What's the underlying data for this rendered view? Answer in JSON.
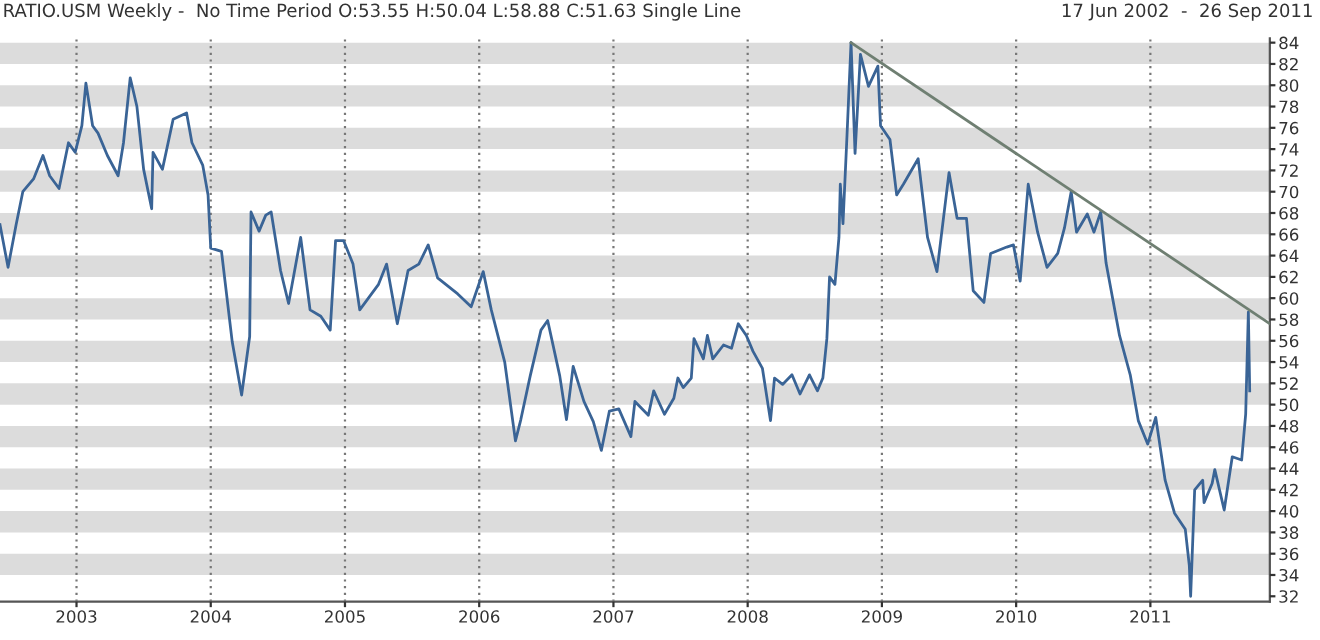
{
  "chart_data": {
    "type": "line",
    "title": "RATIO.USM Weekly -  No Time Period O:53.55 H:50.04 L:58.88 C:51.63 Single Line",
    "subtitle": "17 Jun 2002  -  26 Sep 2011",
    "series": [
      {
        "color": "#3a6496",
        "x": [
          2002.43,
          2002.49,
          2002.55,
          2002.6,
          2002.68,
          2002.75,
          2002.8,
          2002.87,
          2002.94,
          2002.99,
          2003.04,
          2003.07,
          2003.12,
          2003.16,
          2003.23,
          2003.31,
          2003.35,
          2003.4,
          2003.45,
          2003.5,
          2003.56,
          2003.57,
          2003.64,
          2003.72,
          2003.82,
          2003.86,
          2003.94,
          2003.98,
          2004.0,
          2004.08,
          2004.16,
          2004.23,
          2004.29,
          2004.3,
          2004.36,
          2004.41,
          2004.45,
          2004.52,
          2004.58,
          2004.67,
          2004.74,
          2004.82,
          2004.89,
          2004.93,
          2004.99,
          2005.06,
          2005.11,
          2005.18,
          2005.25,
          2005.31,
          2005.39,
          2005.47,
          2005.55,
          2005.62,
          2005.69,
          2005.84,
          2005.94,
          2006.03,
          2006.09,
          2006.19,
          2006.27,
          2006.31,
          2006.38,
          2006.46,
          2006.51,
          2006.6,
          2006.65,
          2006.7,
          2006.78,
          2006.85,
          2006.91,
          2006.97,
          2007.04,
          2007.13,
          2007.16,
          2007.26,
          2007.3,
          2007.38,
          2007.45,
          2007.48,
          2007.52,
          2007.58,
          2007.6,
          2007.67,
          2007.7,
          2007.74,
          2007.82,
          2007.88,
          2007.93,
          2007.99,
          2008.04,
          2008.11,
          2008.17,
          2008.2,
          2008.26,
          2008.33,
          2008.39,
          2008.46,
          2008.52,
          2008.56,
          2008.59,
          2008.61,
          2008.65,
          2008.68,
          2008.69,
          2008.71,
          2008.74,
          2008.77,
          2008.8,
          2008.84,
          2008.9,
          2008.97,
          2008.99,
          2009.06,
          2009.11,
          2009.16,
          2009.27,
          2009.34,
          2009.41,
          2009.5,
          2009.56,
          2009.63,
          2009.68,
          2009.76,
          2009.81,
          2009.93,
          2009.98,
          2010.03,
          2010.09,
          2010.16,
          2010.23,
          2010.31,
          2010.36,
          2010.41,
          2010.45,
          2010.53,
          2010.58,
          2010.63,
          2010.67,
          2010.77,
          2010.85,
          2010.91,
          2010.98,
          2011.04,
          2011.11,
          2011.18,
          2011.26,
          2011.29,
          2011.3,
          2011.33,
          2011.39,
          2011.4,
          2011.46,
          2011.48,
          2011.55,
          2011.61,
          2011.68,
          2011.71,
          2011.73,
          2011.74
        ],
        "values": [
          66.9,
          62.9,
          66.9,
          70.0,
          71.2,
          73.4,
          71.5,
          70.3,
          74.6,
          73.7,
          76.2,
          80.2,
          76.2,
          75.5,
          73.4,
          71.5,
          74.6,
          80.7,
          78.0,
          72.1,
          68.4,
          73.7,
          72.1,
          76.8,
          77.4,
          74.6,
          72.5,
          69.7,
          64.7,
          64.4,
          55.9,
          50.9,
          56.4,
          68.1,
          66.3,
          67.8,
          68.1,
          62.6,
          59.5,
          65.7,
          58.9,
          58.3,
          57.0,
          65.4,
          65.4,
          63.2,
          58.9,
          60.1,
          61.3,
          63.2,
          57.6,
          62.6,
          63.2,
          65.0,
          61.9,
          60.4,
          59.2,
          62.5,
          58.9,
          54.0,
          46.6,
          48.6,
          52.7,
          57.0,
          57.9,
          52.7,
          48.6,
          53.6,
          50.3,
          48.4,
          45.7,
          49.4,
          49.6,
          47.0,
          50.3,
          49.0,
          51.3,
          49.1,
          50.6,
          52.5,
          51.6,
          52.5,
          56.2,
          54.3,
          56.5,
          54.3,
          55.6,
          55.3,
          57.6,
          56.5,
          55.0,
          53.4,
          48.5,
          52.5,
          51.9,
          52.8,
          51.0,
          52.8,
          51.3,
          52.5,
          56.2,
          62.0,
          61.3,
          65.7,
          70.7,
          67.0,
          75.3,
          84.0,
          73.6,
          82.9,
          79.9,
          81.8,
          76.2,
          74.9,
          69.7,
          70.7,
          73.1,
          65.7,
          62.5,
          71.8,
          67.5,
          67.5,
          60.7,
          59.6,
          64.2,
          64.8,
          65.0,
          61.6,
          70.7,
          66.2,
          62.9,
          64.2,
          66.6,
          70.0,
          66.2,
          67.9,
          66.2,
          68.1,
          63.3,
          56.5,
          52.8,
          48.5,
          46.3,
          48.8,
          42.9,
          39.8,
          38.3,
          34.9,
          32.0,
          42.0,
          42.9,
          40.8,
          42.6,
          43.9,
          40.1,
          45.1,
          44.8,
          49.1,
          58.7,
          51.3
        ]
      },
      {
        "type": "line",
        "color": "#6f7f72",
        "x": [
          2008.77,
          2011.89
        ],
        "values": [
          84.0,
          57.6
        ]
      }
    ],
    "xlim": [
      2002.43,
      2011.89
    ],
    "xticks": [
      2003,
      2004,
      2005,
      2006,
      2007,
      2008,
      2009,
      2010,
      2011
    ],
    "ylim": [
      31.5,
      84.4
    ],
    "yticks": [
      32,
      34,
      36,
      38,
      40,
      42,
      44,
      46,
      48,
      50,
      52,
      54,
      56,
      58,
      60,
      62,
      64,
      66,
      68,
      70,
      72,
      74,
      76,
      78,
      80,
      82,
      84
    ],
    "grid": "x",
    "bands": [
      {
        "axis": "y",
        "from": 34,
        "to": 36,
        "color": "#dcdcdc"
      },
      {
        "axis": "y",
        "from": 38,
        "to": 40,
        "color": "#dcdcdc"
      },
      {
        "axis": "y",
        "from": 42,
        "to": 44,
        "color": "#dcdcdc"
      },
      {
        "axis": "y",
        "from": 46,
        "to": 48,
        "color": "#dcdcdc"
      },
      {
        "axis": "y",
        "from": 50,
        "to": 52,
        "color": "#dcdcdc"
      },
      {
        "axis": "y",
        "from": 54,
        "to": 56,
        "color": "#dcdcdc"
      },
      {
        "axis": "y",
        "from": 58,
        "to": 60,
        "color": "#dcdcdc"
      },
      {
        "axis": "y",
        "from": 62,
        "to": 64,
        "color": "#dcdcdc"
      },
      {
        "axis": "y",
        "from": 66,
        "to": 68,
        "color": "#dcdcdc"
      },
      {
        "axis": "y",
        "from": 70,
        "to": 72,
        "color": "#dcdcdc"
      },
      {
        "axis": "y",
        "from": 74,
        "to": 76,
        "color": "#dcdcdc"
      },
      {
        "axis": "y",
        "from": 78,
        "to": 80,
        "color": "#dcdcdc"
      },
      {
        "axis": "y",
        "from": 82,
        "to": 84,
        "color": "#dcdcdc"
      }
    ]
  }
}
